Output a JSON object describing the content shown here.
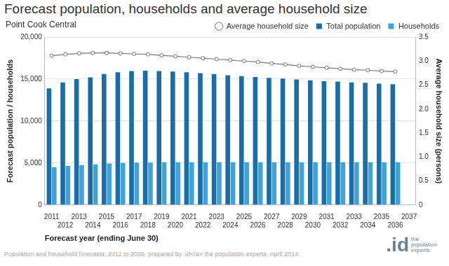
{
  "chart_data": {
    "type": "bar",
    "title": "Forecast population, households and average household size",
    "subtitle": "Point Cook Central",
    "x_label": "Forecast year (ending June 30)",
    "y_label": "Forecast population / households",
    "y2_label": "Average household size (persons)",
    "source": "Population and household forecasts, 2011 to 2036, prepared by .id</a> the population experts, April 2014.",
    "logo": [
      ".id",
      "the population experts"
    ],
    "categories": [
      "2011",
      "2012",
      "2013",
      "2014",
      "2015",
      "2016",
      "2017",
      "2018",
      "2019",
      "2020",
      "2021",
      "2022",
      "2023",
      "2024",
      "2025",
      "2026",
      "2027",
      "2028",
      "2029",
      "2030",
      "2031",
      "2032",
      "2033",
      "2034",
      "2035",
      "2036",
      "2037"
    ],
    "series": [
      {
        "name": "Total population",
        "type": "bar",
        "color": "#1b6ea5",
        "values": [
          13900,
          14600,
          15000,
          15200,
          15600,
          15800,
          15950,
          16000,
          15950,
          15900,
          15800,
          15700,
          15600,
          15450,
          15350,
          15250,
          15150,
          15050,
          14950,
          14850,
          14750,
          14700,
          14600,
          14550,
          14450,
          14400,
          null
        ]
      },
      {
        "name": "Households",
        "type": "bar",
        "color": "#3fa2d8",
        "values": [
          4500,
          4650,
          4750,
          4850,
          4950,
          5000,
          5050,
          5050,
          5100,
          5100,
          5100,
          5100,
          5100,
          5100,
          5100,
          5100,
          5100,
          5100,
          5100,
          5100,
          5100,
          5100,
          5100,
          5100,
          5100,
          5100,
          null
        ]
      },
      {
        "name": "Average household size",
        "type": "line",
        "color": "#777777",
        "marker": "circle",
        "line_style": "solid",
        "axis": "y2",
        "values": [
          3.11,
          3.14,
          3.16,
          3.17,
          3.17,
          3.16,
          3.15,
          3.14,
          3.12,
          3.1,
          3.08,
          3.06,
          3.04,
          3.02,
          3.0,
          2.98,
          2.95,
          2.93,
          2.9,
          2.88,
          2.86,
          2.84,
          2.82,
          2.81,
          2.79,
          2.78,
          null
        ]
      }
    ],
    "ylim": [
      0,
      20000
    ],
    "yticks": [
      0,
      {
        "value": 5000,
        "label": "5,000"
      },
      {
        "value": 10000,
        "label": "10,000"
      },
      {
        "value": 15000,
        "label": "15,000"
      },
      {
        "value": 20000,
        "label": "20,000"
      }
    ],
    "y2lim": [
      0,
      3.5
    ],
    "y2ticks": [
      0,
      0.5,
      {
        "value": 1,
        "label": "1.0"
      },
      1.5,
      {
        "value": 2,
        "label": "2.0"
      },
      2.5,
      {
        "value": 3,
        "label": "3.0"
      },
      3.5
    ],
    "grid": true,
    "legend": "top-right"
  }
}
